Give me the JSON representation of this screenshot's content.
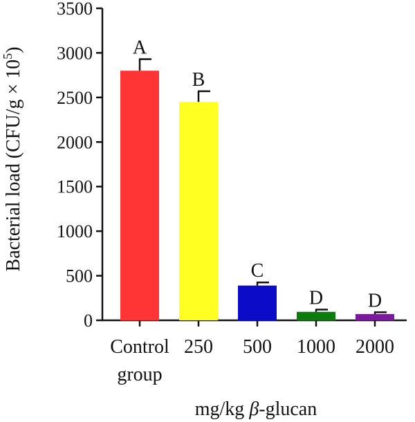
{
  "chart_data": {
    "type": "bar",
    "title": "",
    "xlabel_parts": [
      "mg/kg ",
      "β",
      "-glucan"
    ],
    "ylabel": "Bacterial load (CFU/g × 10",
    "ylabel_sup": "5",
    "ylabel_close": ")",
    "ylim": [
      0,
      3500
    ],
    "yticks": [
      0,
      500,
      1000,
      1500,
      2000,
      2500,
      3000,
      3500
    ],
    "categories": [
      [
        "Control",
        "group"
      ],
      [
        "250"
      ],
      [
        "500"
      ],
      [
        "1000"
      ],
      [
        "2000"
      ]
    ],
    "values": [
      2800,
      2450,
      390,
      95,
      70
    ],
    "errors": [
      130,
      120,
      35,
      25,
      20
    ],
    "letters": [
      "A",
      "B",
      "C",
      "D",
      "D"
    ],
    "colors": [
      "#ff3535",
      "#ffff22",
      "#0b0bc8",
      "#0c7d0c",
      "#7a1b9a"
    ],
    "grid": false,
    "legend": "none"
  }
}
